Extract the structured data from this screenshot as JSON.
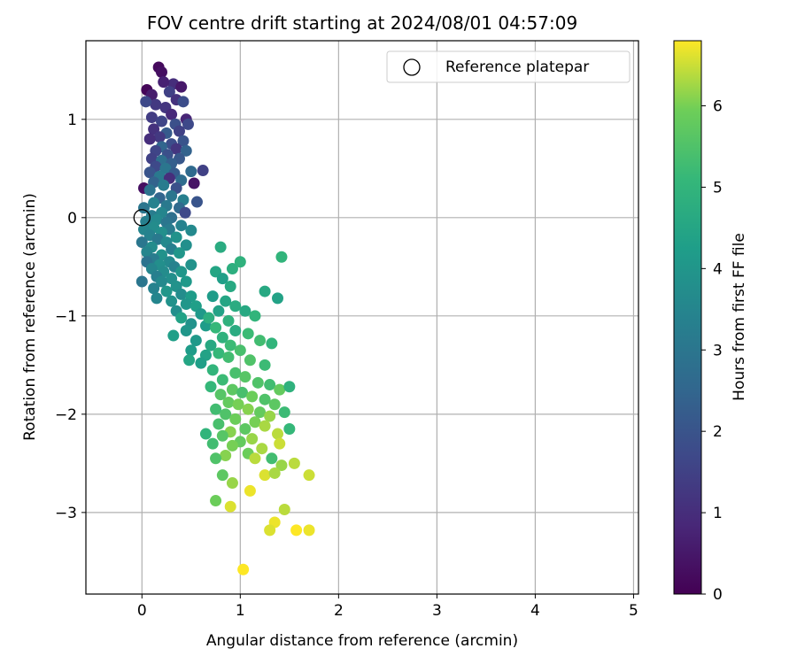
{
  "chart_data": {
    "type": "scatter",
    "title": "FOV centre drift starting at 2024/08/01 04:57:09",
    "xlabel": "Angular distance from reference (arcmin)",
    "ylabel": "Rotation from reference (arcmin)",
    "xlim": [
      -0.57,
      5.05
    ],
    "ylim": [
      -3.83,
      1.8
    ],
    "xticks": [
      0,
      1,
      2,
      3,
      4,
      5
    ],
    "yticks": [
      -3,
      -2,
      -1,
      0,
      1
    ],
    "grid": true,
    "legend": {
      "position": "top-right",
      "entries": [
        "Reference platepar"
      ]
    },
    "reference_point": {
      "x": 0,
      "y": 0
    },
    "colorbar": {
      "label": "Hours from first FF file",
      "colormap": "viridis",
      "range": [
        0,
        6.8
      ],
      "ticks": [
        0,
        1,
        2,
        3,
        4,
        5,
        6
      ]
    },
    "series": [
      {
        "colored_by": "hours",
        "points": [
          [
            0.17,
            1.53,
            0.2
          ],
          [
            0.2,
            1.48,
            0.3
          ],
          [
            0.32,
            1.36,
            1.0
          ],
          [
            0.4,
            1.33,
            0.5
          ],
          [
            0.05,
            1.3,
            0.1
          ],
          [
            0.22,
            1.38,
            0.7
          ],
          [
            0.1,
            1.25,
            0.6
          ],
          [
            0.28,
            1.28,
            1.5
          ],
          [
            0.35,
            1.2,
            1.1
          ],
          [
            0.14,
            1.15,
            1.3
          ],
          [
            0.04,
            1.18,
            1.7
          ],
          [
            0.42,
            1.18,
            1.8
          ],
          [
            0.24,
            1.12,
            1.2
          ],
          [
            0.3,
            1.05,
            0.9
          ],
          [
            0.1,
            1.02,
            1.4
          ],
          [
            0.2,
            0.98,
            1.6
          ],
          [
            0.45,
            1.0,
            0.8
          ],
          [
            0.34,
            0.95,
            1.9
          ],
          [
            0.47,
            0.95,
            1.7
          ],
          [
            0.12,
            0.9,
            1.1
          ],
          [
            0.25,
            0.86,
            2.2
          ],
          [
            0.38,
            0.88,
            1.5
          ],
          [
            0.18,
            0.82,
            1.3
          ],
          [
            0.08,
            0.8,
            1.0
          ],
          [
            0.42,
            0.78,
            2.0
          ],
          [
            0.3,
            0.75,
            1.8
          ],
          [
            0.2,
            0.72,
            2.5
          ],
          [
            0.14,
            0.68,
            1.6
          ],
          [
            0.35,
            0.7,
            1.2
          ],
          [
            0.45,
            0.68,
            2.4
          ],
          [
            0.26,
            0.64,
            1.9
          ],
          [
            0.1,
            0.6,
            1.5
          ],
          [
            0.38,
            0.6,
            2.1
          ],
          [
            0.2,
            0.58,
            2.8
          ],
          [
            0.3,
            0.55,
            2.3
          ],
          [
            0.14,
            0.52,
            1.7
          ],
          [
            0.24,
            0.5,
            3.0
          ],
          [
            0.08,
            0.46,
            2.0
          ],
          [
            0.5,
            0.47,
            2.6
          ],
          [
            0.62,
            0.48,
            1.5
          ],
          [
            0.33,
            0.45,
            2.2
          ],
          [
            0.18,
            0.42,
            3.1
          ],
          [
            0.28,
            0.4,
            1.0
          ],
          [
            0.4,
            0.38,
            2.7
          ],
          [
            0.12,
            0.36,
            2.4
          ],
          [
            0.53,
            0.35,
            0.4
          ],
          [
            0.22,
            0.33,
            3.2
          ],
          [
            0.35,
            0.3,
            1.9
          ],
          [
            0.02,
            0.3,
            0.3
          ],
          [
            0.08,
            0.28,
            2.9
          ],
          [
            0.3,
            0.22,
            3.0
          ],
          [
            0.18,
            0.2,
            2.5
          ],
          [
            0.42,
            0.18,
            3.3
          ],
          [
            0.56,
            0.16,
            2.0
          ],
          [
            0.12,
            0.15,
            3.4
          ],
          [
            0.25,
            0.12,
            3.1
          ],
          [
            0.38,
            0.1,
            2.6
          ],
          [
            0.02,
            0.1,
            3.0
          ],
          [
            0.2,
            0.05,
            3.5
          ],
          [
            0.44,
            0.05,
            1.7
          ],
          [
            0.1,
            0.02,
            3.2
          ],
          [
            0.3,
            0.0,
            2.8
          ],
          [
            0.15,
            -0.02,
            3.6
          ],
          [
            0.04,
            -0.04,
            3.3
          ],
          [
            0.25,
            -0.05,
            3.0
          ],
          [
            0.4,
            -0.08,
            3.4
          ],
          [
            0.12,
            -0.1,
            3.7
          ],
          [
            0.02,
            -0.12,
            3.5
          ],
          [
            0.28,
            -0.12,
            3.2
          ],
          [
            0.2,
            -0.15,
            3.8
          ],
          [
            0.5,
            -0.13,
            3.6
          ],
          [
            0.08,
            -0.18,
            3.4
          ],
          [
            0.35,
            -0.2,
            3.9
          ],
          [
            0.16,
            -0.22,
            3.1
          ],
          [
            0.25,
            -0.25,
            3.6
          ],
          [
            0.0,
            -0.25,
            3.0
          ],
          [
            0.45,
            -0.28,
            3.8
          ],
          [
            0.1,
            -0.3,
            3.7
          ],
          [
            0.3,
            -0.32,
            3.3
          ],
          [
            0.05,
            -0.35,
            3.5
          ],
          [
            0.2,
            -0.38,
            3.9
          ],
          [
            0.38,
            -0.36,
            4.0
          ],
          [
            0.12,
            -0.42,
            3.2
          ],
          [
            0.28,
            -0.45,
            3.6
          ],
          [
            0.05,
            -0.45,
            2.9
          ],
          [
            0.18,
            -0.48,
            3.8
          ],
          [
            0.33,
            -0.5,
            3.4
          ],
          [
            0.5,
            -0.48,
            3.9
          ],
          [
            0.1,
            -0.52,
            3.5
          ],
          [
            0.22,
            -0.55,
            3.7
          ],
          [
            0.4,
            -0.55,
            4.0
          ],
          [
            0.15,
            -0.6,
            3.3
          ],
          [
            0.3,
            -0.62,
            3.8
          ],
          [
            0.0,
            -0.65,
            3.0
          ],
          [
            0.2,
            -0.65,
            3.6
          ],
          [
            0.45,
            -0.65,
            4.1
          ],
          [
            0.35,
            -0.7,
            3.9
          ],
          [
            0.12,
            -0.72,
            3.4
          ],
          [
            0.25,
            -0.75,
            4.0
          ],
          [
            0.4,
            -0.78,
            3.7
          ],
          [
            0.5,
            -0.8,
            4.2
          ],
          [
            0.15,
            -0.82,
            3.5
          ],
          [
            0.3,
            -0.85,
            3.9
          ],
          [
            0.45,
            -0.88,
            4.0
          ],
          [
            0.55,
            -0.9,
            4.3
          ],
          [
            0.35,
            -0.95,
            3.8
          ],
          [
            0.6,
            -0.98,
            4.1
          ],
          [
            0.4,
            -1.02,
            4.4
          ],
          [
            0.5,
            -1.08,
            3.9
          ],
          [
            0.65,
            -1.1,
            4.2
          ],
          [
            0.45,
            -1.15,
            4.0
          ],
          [
            0.32,
            -1.2,
            4.3
          ],
          [
            0.55,
            -1.25,
            4.1
          ],
          [
            0.7,
            -1.3,
            4.6
          ],
          [
            0.5,
            -1.35,
            4.2
          ],
          [
            0.65,
            -1.4,
            4.4
          ],
          [
            0.48,
            -1.45,
            4.5
          ],
          [
            0.6,
            -1.48,
            4.3
          ],
          [
            0.8,
            -0.3,
            4.7
          ],
          [
            0.92,
            -0.52,
            4.8
          ],
          [
            1.0,
            -0.45,
            4.9
          ],
          [
            1.42,
            -0.4,
            5.0
          ],
          [
            1.25,
            -0.75,
            4.6
          ],
          [
            1.38,
            -0.82,
            4.4
          ],
          [
            0.75,
            -0.55,
            4.5
          ],
          [
            0.82,
            -0.62,
            4.3
          ],
          [
            0.9,
            -0.7,
            4.6
          ],
          [
            0.72,
            -0.8,
            4.2
          ],
          [
            0.85,
            -0.85,
            4.5
          ],
          [
            0.95,
            -0.9,
            4.7
          ],
          [
            0.78,
            -0.95,
            4.4
          ],
          [
            0.68,
            -1.02,
            4.8
          ],
          [
            1.05,
            -0.95,
            4.6
          ],
          [
            1.15,
            -1.0,
            5.0
          ],
          [
            0.88,
            -1.05,
            4.9
          ],
          [
            0.75,
            -1.12,
            5.1
          ],
          [
            0.95,
            -1.15,
            4.7
          ],
          [
            1.08,
            -1.18,
            5.2
          ],
          [
            0.82,
            -1.22,
            4.9
          ],
          [
            1.2,
            -1.25,
            5.3
          ],
          [
            1.32,
            -1.28,
            5.0
          ],
          [
            0.9,
            -1.3,
            5.2
          ],
          [
            1.0,
            -1.35,
            5.4
          ],
          [
            0.78,
            -1.38,
            5.1
          ],
          [
            0.88,
            -1.42,
            5.3
          ],
          [
            1.1,
            -1.45,
            5.5
          ],
          [
            1.25,
            -1.5,
            5.2
          ],
          [
            0.72,
            -1.55,
            5.0
          ],
          [
            0.95,
            -1.58,
            5.4
          ],
          [
            1.05,
            -1.62,
            5.6
          ],
          [
            0.82,
            -1.65,
            5.2
          ],
          [
            1.18,
            -1.68,
            5.5
          ],
          [
            1.3,
            -1.7,
            5.3
          ],
          [
            0.7,
            -1.72,
            5.1
          ],
          [
            0.92,
            -1.75,
            5.7
          ],
          [
            1.02,
            -1.78,
            5.4
          ],
          [
            1.4,
            -1.75,
            5.8
          ],
          [
            1.5,
            -1.72,
            4.9
          ],
          [
            0.8,
            -1.8,
            5.6
          ],
          [
            1.12,
            -1.82,
            5.9
          ],
          [
            1.25,
            -1.85,
            5.5
          ],
          [
            0.88,
            -1.88,
            5.8
          ],
          [
            0.98,
            -1.9,
            6.0
          ],
          [
            1.35,
            -1.9,
            5.7
          ],
          [
            0.75,
            -1.95,
            5.3
          ],
          [
            1.08,
            -1.95,
            6.1
          ],
          [
            1.2,
            -1.98,
            5.8
          ],
          [
            0.85,
            -2.0,
            5.5
          ],
          [
            1.3,
            -2.02,
            6.2
          ],
          [
            1.45,
            -1.98,
            5.2
          ],
          [
            0.95,
            -2.05,
            5.9
          ],
          [
            1.15,
            -2.08,
            6.0
          ],
          [
            0.78,
            -2.1,
            5.4
          ],
          [
            1.25,
            -2.12,
            6.3
          ],
          [
            1.05,
            -2.15,
            5.7
          ],
          [
            0.9,
            -2.18,
            6.1
          ],
          [
            1.5,
            -2.15,
            5.1
          ],
          [
            1.38,
            -2.2,
            6.4
          ],
          [
            0.65,
            -2.2,
            5.0
          ],
          [
            0.82,
            -2.22,
            5.6
          ],
          [
            1.12,
            -2.25,
            6.2
          ],
          [
            1.0,
            -2.28,
            5.8
          ],
          [
            0.72,
            -2.3,
            5.3
          ],
          [
            0.92,
            -2.32,
            6.0
          ],
          [
            1.22,
            -2.35,
            6.3
          ],
          [
            1.4,
            -2.3,
            6.5
          ],
          [
            1.08,
            -2.4,
            5.9
          ],
          [
            0.85,
            -2.42,
            6.1
          ],
          [
            0.75,
            -2.45,
            5.5
          ],
          [
            1.15,
            -2.45,
            6.4
          ],
          [
            1.32,
            -2.45,
            5.3
          ],
          [
            1.42,
            -2.52,
            6.2
          ],
          [
            1.55,
            -2.5,
            6.4
          ],
          [
            0.82,
            -2.62,
            5.7
          ],
          [
            1.25,
            -2.62,
            6.6
          ],
          [
            1.35,
            -2.6,
            6.3
          ],
          [
            1.7,
            -2.62,
            6.5
          ],
          [
            0.92,
            -2.7,
            6.2
          ],
          [
            1.1,
            -2.78,
            6.7
          ],
          [
            0.75,
            -2.88,
            5.9
          ],
          [
            0.9,
            -2.94,
            6.6
          ],
          [
            1.45,
            -2.97,
            6.4
          ],
          [
            1.35,
            -3.1,
            6.7
          ],
          [
            1.3,
            -3.18,
            6.6
          ],
          [
            1.57,
            -3.18,
            6.8
          ],
          [
            1.7,
            -3.18,
            6.7
          ],
          [
            1.03,
            -3.58,
            6.8
          ]
        ]
      }
    ]
  }
}
